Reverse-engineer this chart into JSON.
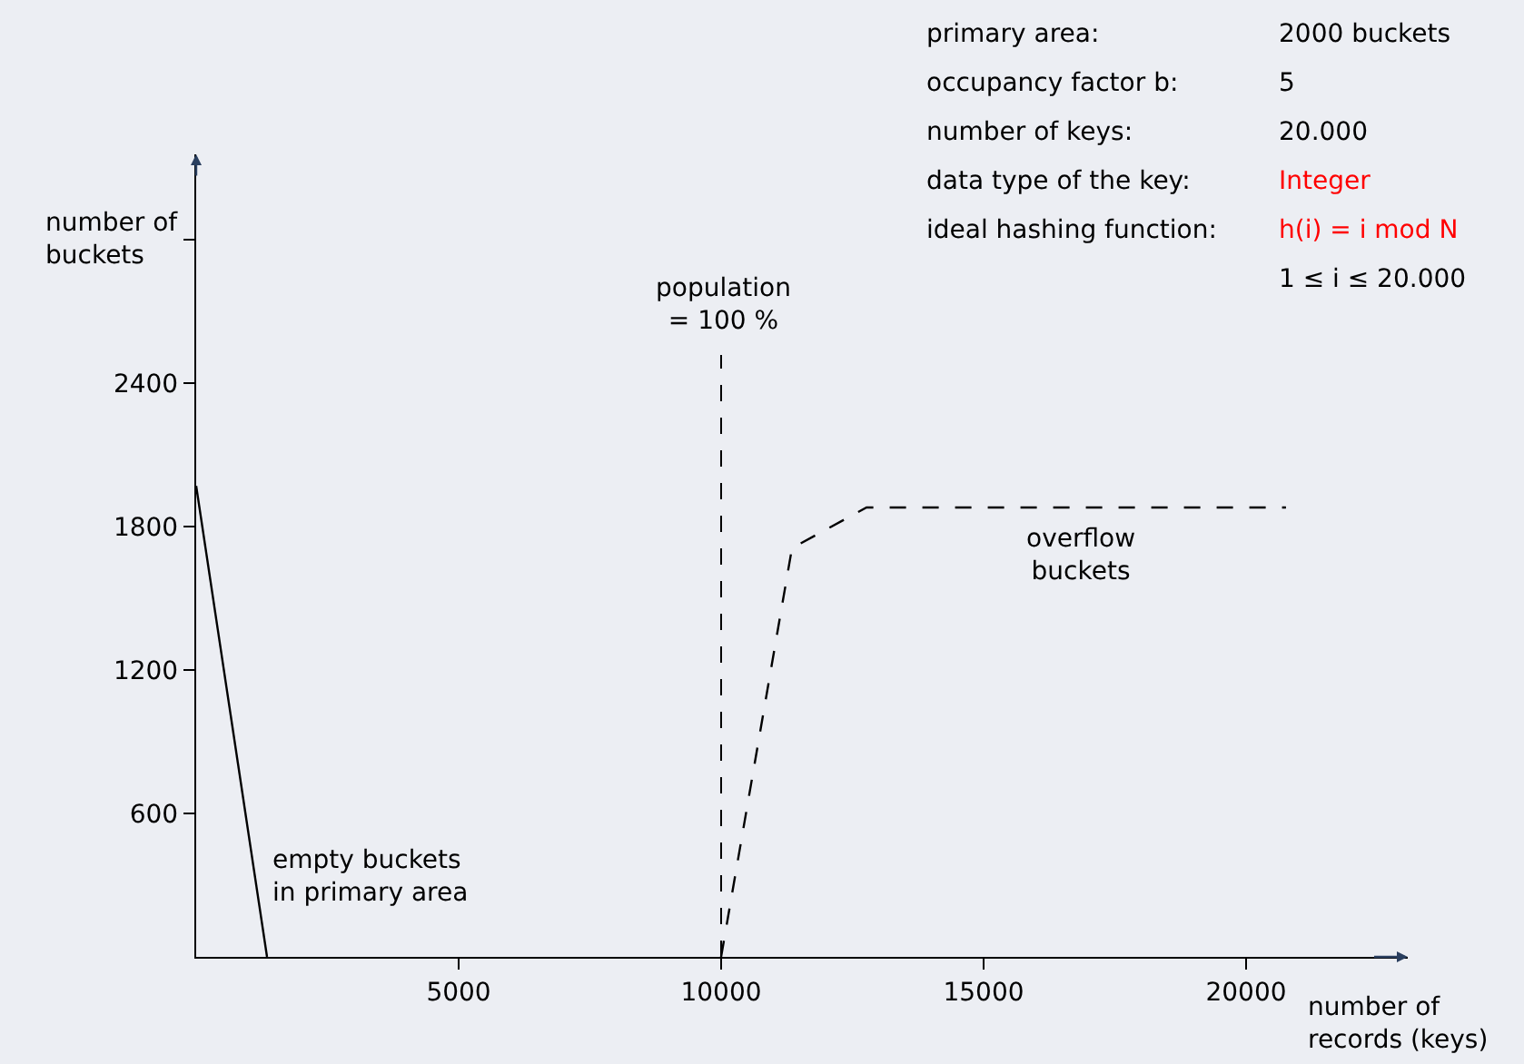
{
  "chart_data": {
    "type": "line",
    "xlabel": "number of\nrecords (keys)",
    "ylabel": "number of\nbuckets",
    "series": [
      {
        "color": "#000000",
        "line_style": "solid",
        "x": [
          0,
          1350
        ],
        "values": [
          1970,
          0
        ]
      },
      {
        "color": "#000000",
        "line_style": "dashed",
        "x": [
          10000,
          11350,
          12770,
          20760
        ],
        "values": [
          0,
          1710,
          1880,
          1880
        ]
      }
    ],
    "xlim": [
      0,
      23080
    ],
    "ylim": [
      0,
      3357
    ],
    "xticks": [
      5000,
      10000,
      15000,
      20000
    ],
    "yticks": [
      600,
      1200,
      1800,
      2400,
      {
        "value": 3000,
        "label": null
      }
    ],
    "grid": false,
    "legend": false,
    "marker": "none",
    "ref_lines": [
      {
        "axis": "x",
        "value": 10000,
        "line_style": "dashed",
        "color": "#000000"
      }
    ],
    "annotations": [
      "primary area:",
      "2000 buckets",
      "occupancy factor b:",
      "5",
      "number of keys:",
      "20.000",
      "data type of the key:",
      "Integer",
      "ideal hashing function:",
      "h(i) = i mod N",
      "1 ≤ i ≤ 20.000",
      "population\n= 100 %",
      "empty buckets\nin primary area",
      "overflow\nbuckets"
    ]
  }
}
